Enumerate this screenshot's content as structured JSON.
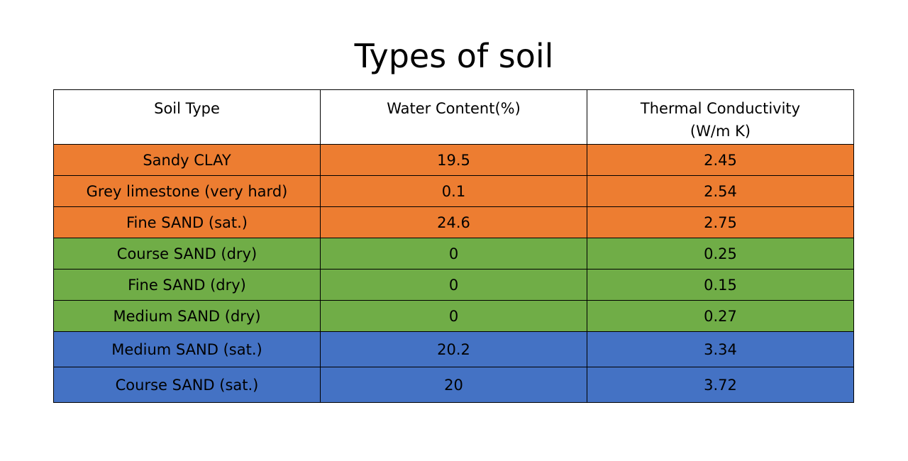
{
  "title": "Types of soil",
  "colors": {
    "orange": "#ED7D31",
    "green": "#70AD47",
    "blue": "#4472C4"
  },
  "table": {
    "headers": [
      "Soil Type",
      "Water Content(%)",
      "Thermal Conductivity",
      "(W/m K)"
    ],
    "rows": [
      {
        "soil": "Sandy CLAY",
        "water": "19.5",
        "conductivity": "2.45",
        "color": "#ED7D31"
      },
      {
        "soil": "Grey limestone (very hard)",
        "water": "0.1",
        "conductivity": "2.54",
        "color": "#ED7D31"
      },
      {
        "soil": "Fine SAND (sat.)",
        "water": "24.6",
        "conductivity": "2.75",
        "color": "#ED7D31"
      },
      {
        "soil": "Course SAND (dry)",
        "water": "0",
        "conductivity": "0.25",
        "color": "#70AD47"
      },
      {
        "soil": "Fine SAND (dry)",
        "water": "0",
        "conductivity": "0.15",
        "color": "#70AD47"
      },
      {
        "soil": "Medium SAND (dry)",
        "water": "0",
        "conductivity": "0.27",
        "color": "#70AD47"
      },
      {
        "soil": "Medium SAND (sat.)",
        "water": "20.2",
        "conductivity": "3.34",
        "color": "#4472C4"
      },
      {
        "soil": "Course SAND (sat.)",
        "water": "20",
        "conductivity": "3.72",
        "color": "#4472C4"
      }
    ]
  }
}
